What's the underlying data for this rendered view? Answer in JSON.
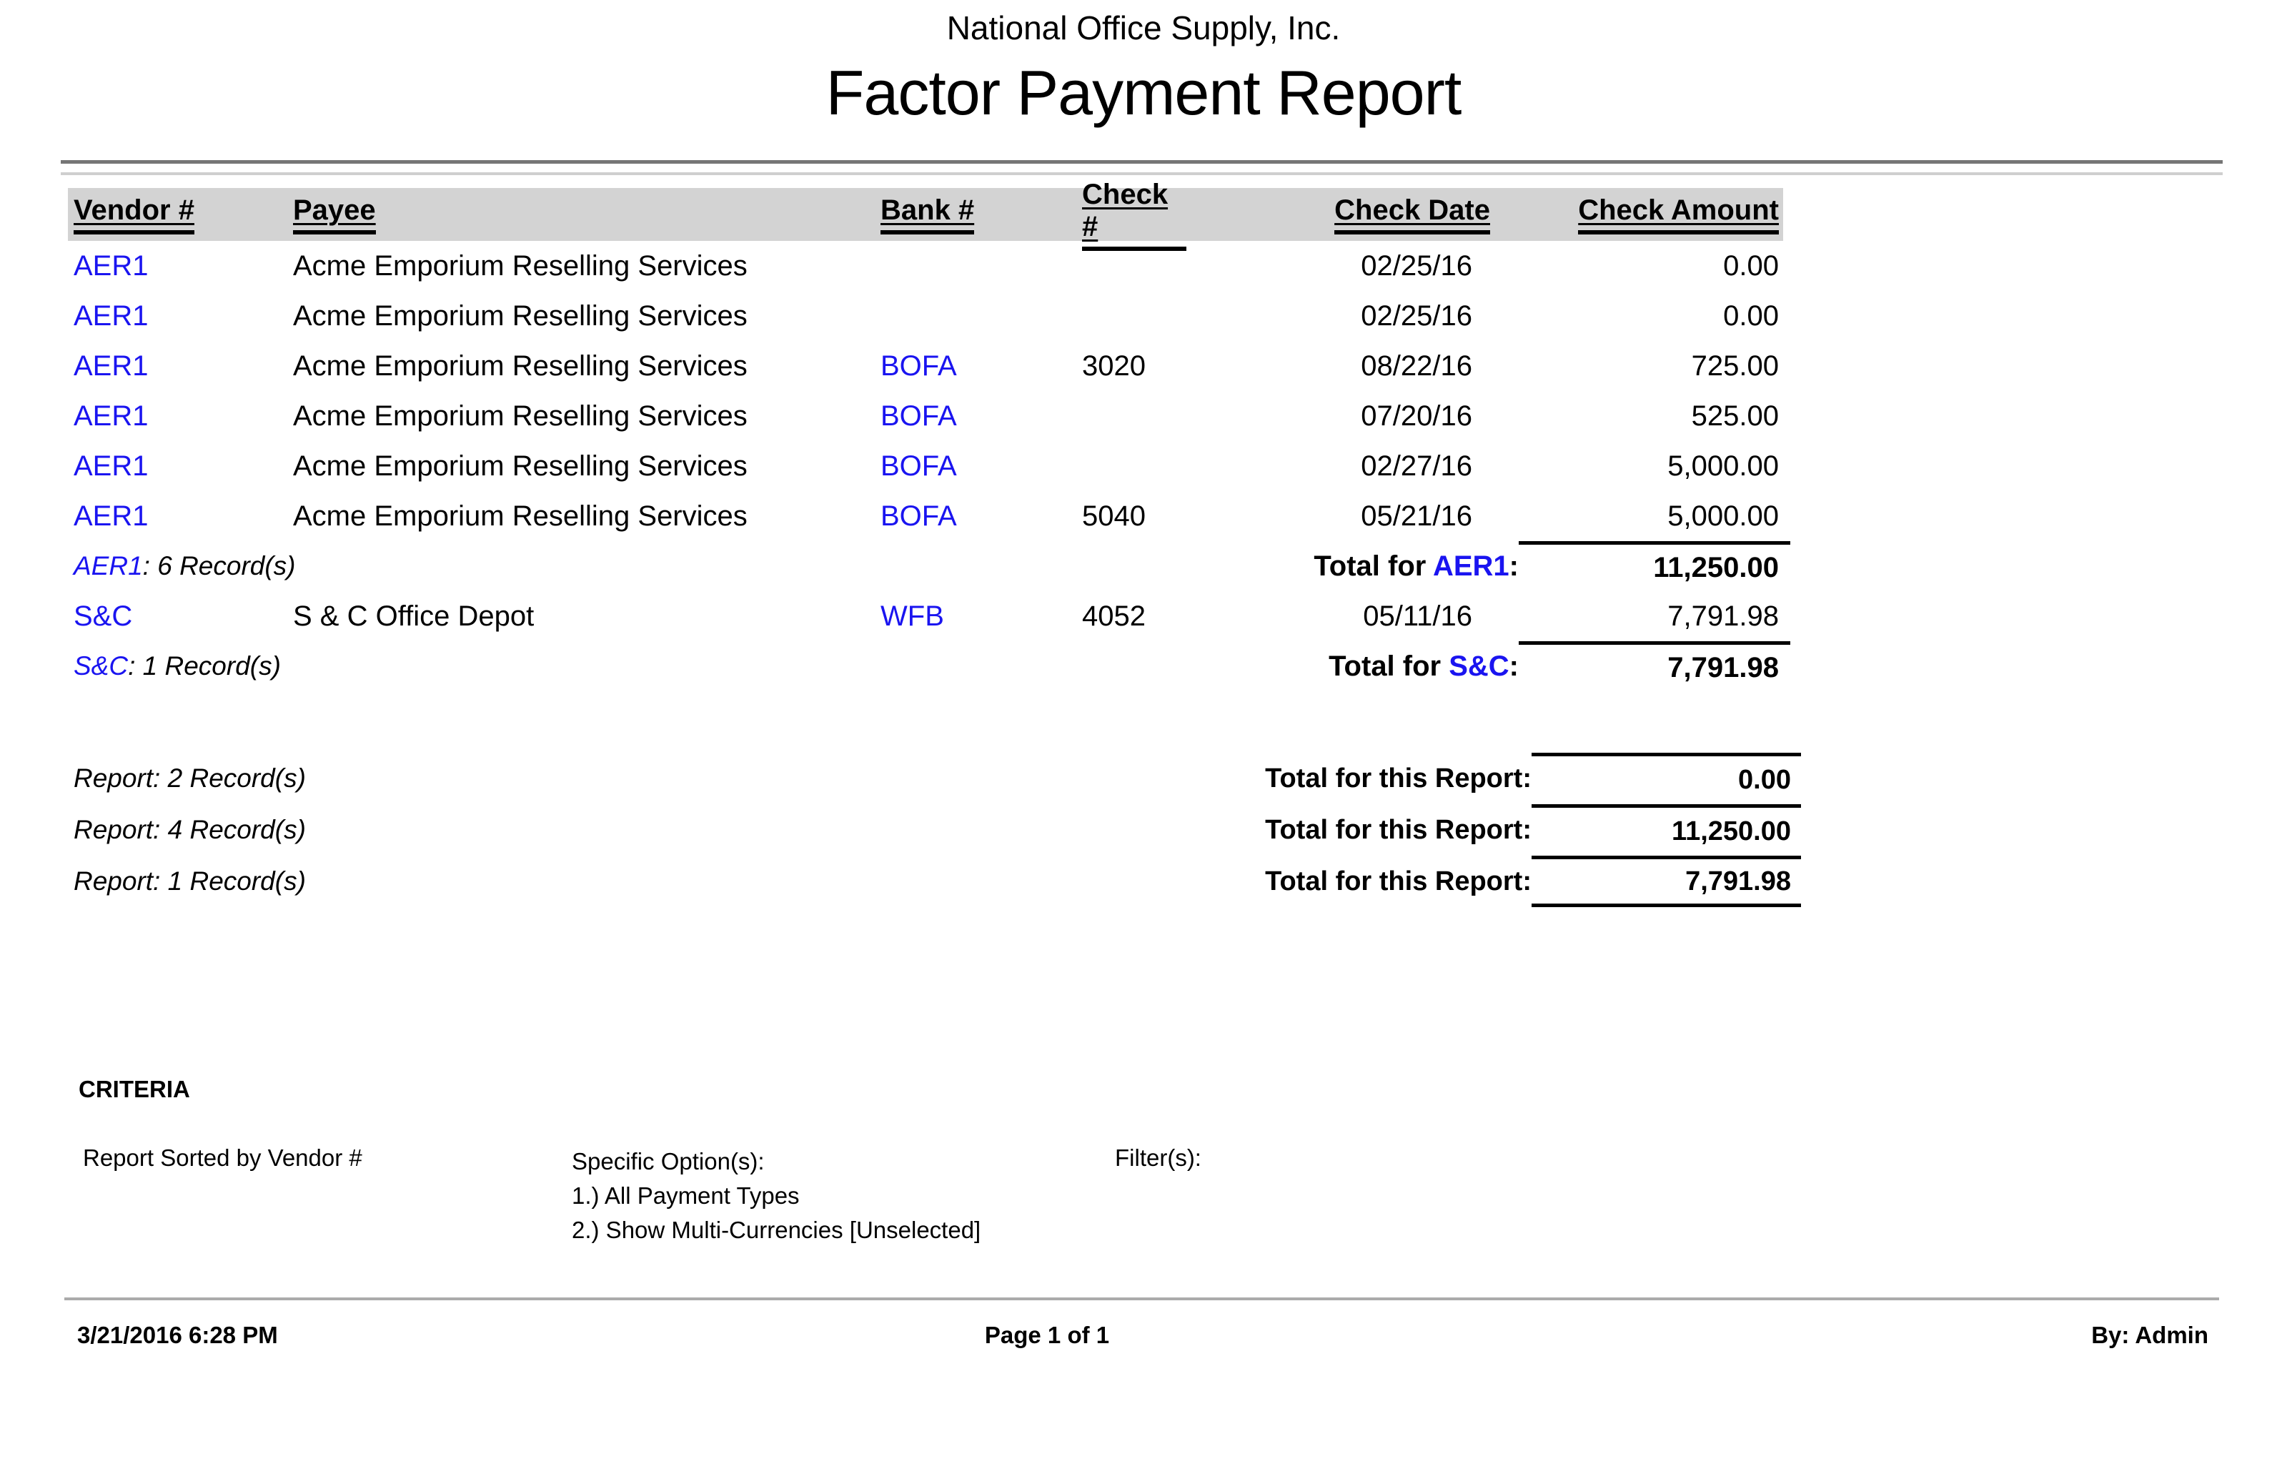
{
  "report": {
    "company": "National Office Supply, Inc.",
    "title": "Factor Payment Report",
    "columns": [
      "Vendor #",
      "Payee",
      "Bank #",
      "Check #",
      "Check Date",
      "Check Amount"
    ],
    "groups": [
      {
        "code": "AER1",
        "records_suffix": ": 6 Record(s)",
        "total_prefix": "Total for ",
        "total_suffix": ":",
        "total_amount": "11,250.00",
        "rows": [
          {
            "vendor": "AER1",
            "payee": "Acme Emporium Reselling Services",
            "bank": "",
            "check": "",
            "date": "02/25/16",
            "amount": "0.00"
          },
          {
            "vendor": "AER1",
            "payee": "Acme Emporium Reselling Services",
            "bank": "",
            "check": "",
            "date": "02/25/16",
            "amount": "0.00"
          },
          {
            "vendor": "AER1",
            "payee": "Acme Emporium Reselling Services",
            "bank": "BOFA",
            "check": "3020",
            "date": "08/22/16",
            "amount": "725.00"
          },
          {
            "vendor": "AER1",
            "payee": "Acme Emporium Reselling Services",
            "bank": "BOFA",
            "check": "",
            "date": "07/20/16",
            "amount": "525.00"
          },
          {
            "vendor": "AER1",
            "payee": "Acme Emporium Reselling Services",
            "bank": "BOFA",
            "check": "",
            "date": "02/27/16",
            "amount": "5,000.00"
          },
          {
            "vendor": "AER1",
            "payee": "Acme Emporium Reselling Services",
            "bank": "BOFA",
            "check": "5040",
            "date": "05/21/16",
            "amount": "5,000.00"
          }
        ]
      },
      {
        "code": "S&C",
        "records_suffix": ": 1 Record(s)",
        "total_prefix": "Total for ",
        "total_suffix": ":",
        "total_amount": "7,791.98",
        "rows": [
          {
            "vendor": "S&C",
            "payee": "S & C Office Depot",
            "bank": "WFB",
            "check": "4052",
            "date": "05/11/16",
            "amount": "7,791.98"
          }
        ]
      }
    ],
    "report_totals": [
      {
        "records": "Report: 2 Record(s)",
        "label": "Total for this Report:",
        "amount": "0.00"
      },
      {
        "records": "Report: 4 Record(s)",
        "label": "Total for this Report:",
        "amount": "11,250.00"
      },
      {
        "records": "Report: 1 Record(s)",
        "label": "Total for this Report:",
        "amount": "7,791.98"
      }
    ],
    "criteria": {
      "heading": "CRITERIA",
      "sorted_by": "Report Sorted by Vendor #",
      "specific_options_label": "Specific Option(s):",
      "specific_options": [
        "1.) All Payment Types",
        "2.) Show Multi-Currencies [Unselected]"
      ],
      "filters_label": "Filter(s):"
    },
    "footer": {
      "datetime": "3/21/2016 6:28 PM",
      "page": "Page 1 of 1",
      "by": "By: Admin"
    },
    "colors": {
      "link_blue": "#1a14f0",
      "header_bar": "#d3d3d3"
    }
  }
}
